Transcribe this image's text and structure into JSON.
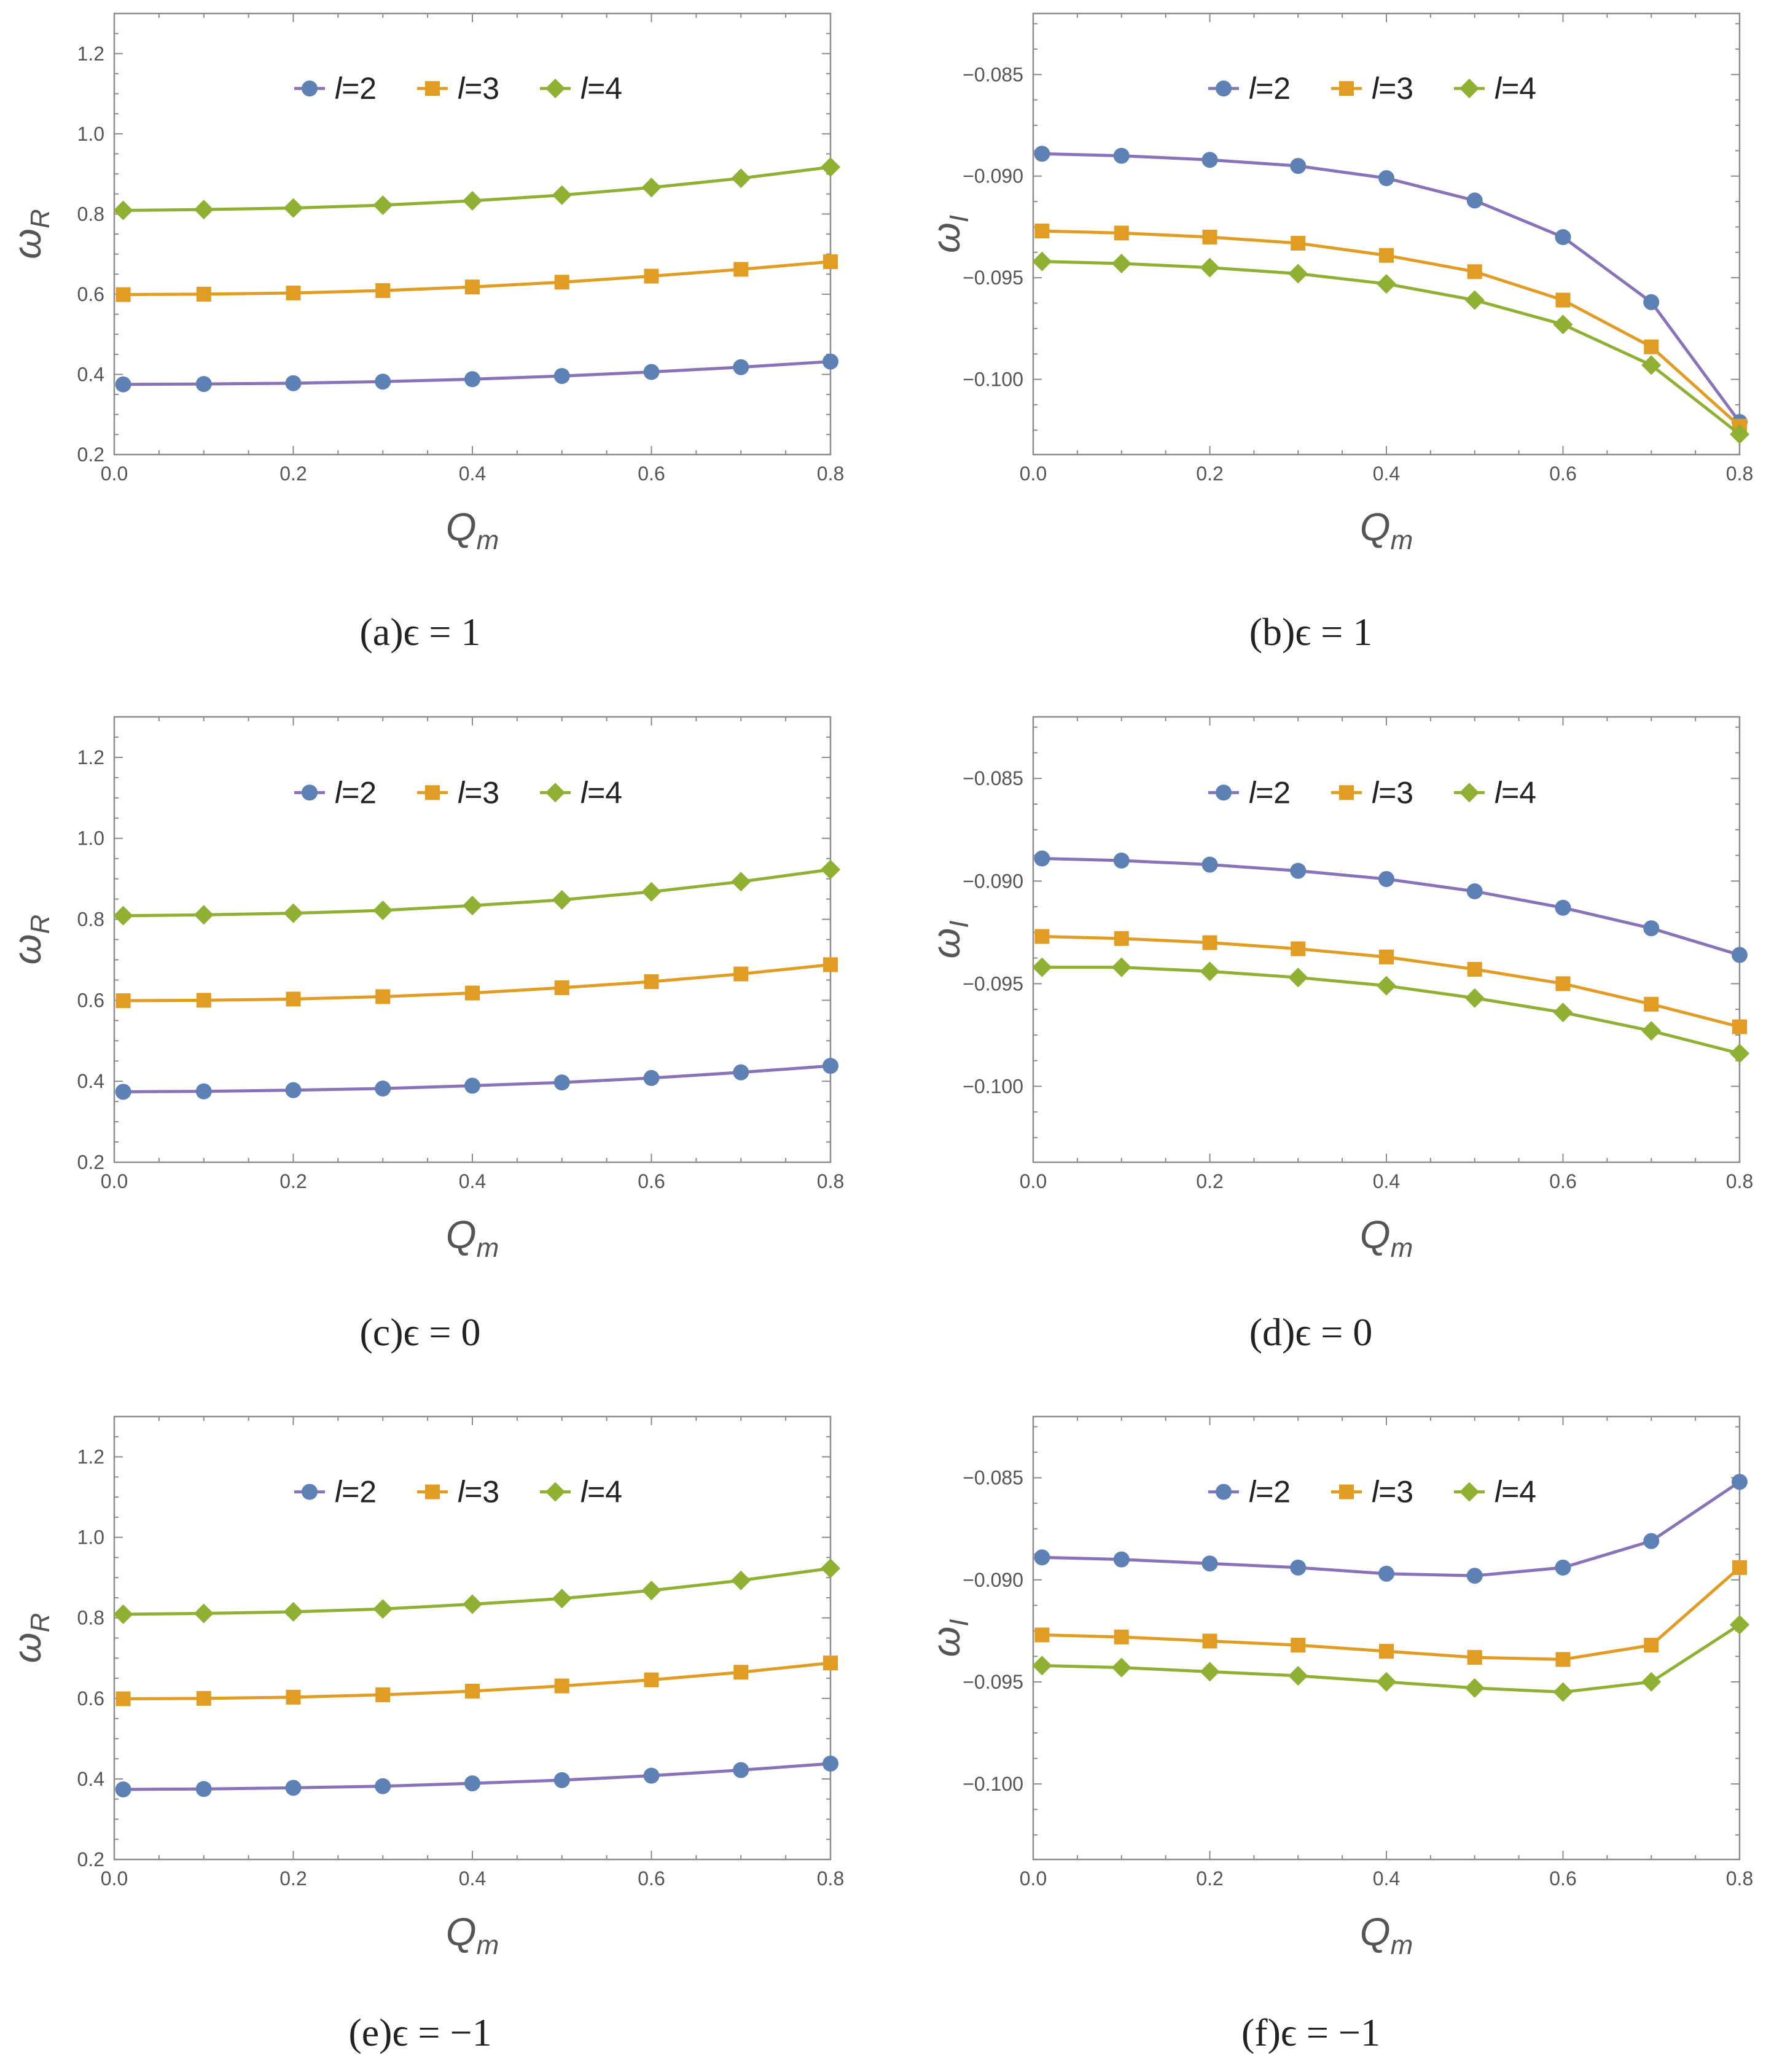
{
  "chart_data": [
    {
      "id": "a",
      "type": "line",
      "caption": "(a)ϵ = 1",
      "xlabel": "Q",
      "xlabel_sub": "m",
      "ylabel": "ω",
      "ylabel_sub": "R",
      "xlim": [
        0,
        0.8
      ],
      "ylim": [
        0.2,
        1.3
      ],
      "xticks": [
        "0.0",
        "0.2",
        "0.4",
        "0.6",
        "0.8"
      ],
      "yticks": [
        "0.2",
        "0.4",
        "0.6",
        "0.8",
        "1.0",
        "1.2"
      ],
      "legend": "top-center",
      "x": [
        0.01,
        0.1,
        0.2,
        0.3,
        0.4,
        0.5,
        0.6,
        0.7,
        0.8
      ],
      "series": [
        {
          "name": "l=2",
          "marker": "circle",
          "values": [
            0.375,
            0.376,
            0.378,
            0.382,
            0.388,
            0.396,
            0.406,
            0.418,
            0.432
          ]
        },
        {
          "name": "l=3",
          "marker": "square",
          "values": [
            0.599,
            0.6,
            0.603,
            0.609,
            0.618,
            0.63,
            0.645,
            0.662,
            0.681
          ]
        },
        {
          "name": "l=4",
          "marker": "diamond",
          "values": [
            0.809,
            0.811,
            0.815,
            0.822,
            0.833,
            0.847,
            0.866,
            0.889,
            0.917
          ]
        }
      ]
    },
    {
      "id": "b",
      "type": "line",
      "caption": "(b)ϵ = 1",
      "xlabel": "Q",
      "xlabel_sub": "m",
      "ylabel": "ω",
      "ylabel_sub": "I",
      "xlim": [
        0,
        0.8
      ],
      "ylim": [
        -0.1037,
        -0.082
      ],
      "xticks": [
        "0.0",
        "0.2",
        "0.4",
        "0.6",
        "0.8"
      ],
      "yticks": [
        "-0.085",
        "-0.090",
        "-0.095",
        "-0.100"
      ],
      "legend": "top-center",
      "x": [
        0.01,
        0.1,
        0.2,
        0.3,
        0.4,
        0.5,
        0.6,
        0.7,
        0.8
      ],
      "series": [
        {
          "name": "l=2",
          "marker": "circle",
          "values": [
            -0.0889,
            -0.089,
            -0.0892,
            -0.0895,
            -0.0901,
            -0.0912,
            -0.093,
            -0.0962,
            -0.1021
          ]
        },
        {
          "name": "l=3",
          "marker": "square",
          "values": [
            -0.0927,
            -0.0928,
            -0.093,
            -0.0933,
            -0.0939,
            -0.0947,
            -0.0961,
            -0.0984,
            -0.1023
          ]
        },
        {
          "name": "l=4",
          "marker": "diamond",
          "values": [
            -0.0942,
            -0.0943,
            -0.0945,
            -0.0948,
            -0.0953,
            -0.0961,
            -0.0973,
            -0.0993,
            -0.1027
          ]
        }
      ]
    },
    {
      "id": "c",
      "type": "line",
      "caption": "(c)ϵ = 0",
      "xlabel": "Q",
      "xlabel_sub": "m",
      "ylabel": "ω",
      "ylabel_sub": "R",
      "xlim": [
        0,
        0.8
      ],
      "ylim": [
        0.2,
        1.3
      ],
      "xticks": [
        "0.0",
        "0.2",
        "0.4",
        "0.6",
        "0.8"
      ],
      "yticks": [
        "0.2",
        "0.4",
        "0.6",
        "0.8",
        "1.0",
        "1.2"
      ],
      "legend": "top-center",
      "x": [
        0.01,
        0.1,
        0.2,
        0.3,
        0.4,
        0.5,
        0.6,
        0.7,
        0.8
      ],
      "series": [
        {
          "name": "l=2",
          "marker": "circle",
          "values": [
            0.374,
            0.375,
            0.378,
            0.382,
            0.389,
            0.397,
            0.408,
            0.422,
            0.438
          ]
        },
        {
          "name": "l=3",
          "marker": "square",
          "values": [
            0.599,
            0.6,
            0.603,
            0.609,
            0.618,
            0.631,
            0.646,
            0.665,
            0.688
          ]
        },
        {
          "name": "l=4",
          "marker": "diamond",
          "values": [
            0.809,
            0.811,
            0.815,
            0.822,
            0.834,
            0.848,
            0.868,
            0.893,
            0.923
          ]
        }
      ]
    },
    {
      "id": "d",
      "type": "line",
      "caption": "(d)ϵ = 0",
      "xlabel": "Q",
      "xlabel_sub": "m",
      "ylabel": "ω",
      "ylabel_sub": "I",
      "xlim": [
        0,
        0.8
      ],
      "ylim": [
        -0.1037,
        -0.082
      ],
      "xticks": [
        "0.0",
        "0.2",
        "0.4",
        "0.6",
        "0.8"
      ],
      "yticks": [
        "-0.085",
        "-0.090",
        "-0.095",
        "-0.100"
      ],
      "legend": "top-center",
      "x": [
        0.01,
        0.1,
        0.2,
        0.3,
        0.4,
        0.5,
        0.6,
        0.7,
        0.8
      ],
      "series": [
        {
          "name": "l=2",
          "marker": "circle",
          "values": [
            -0.0889,
            -0.089,
            -0.0892,
            -0.0895,
            -0.0899,
            -0.0905,
            -0.0913,
            -0.0923,
            -0.0936
          ]
        },
        {
          "name": "l=3",
          "marker": "square",
          "values": [
            -0.0927,
            -0.0928,
            -0.093,
            -0.0933,
            -0.0937,
            -0.0943,
            -0.095,
            -0.096,
            -0.0971
          ]
        },
        {
          "name": "l=4",
          "marker": "diamond",
          "values": [
            -0.0942,
            -0.0942,
            -0.0944,
            -0.0947,
            -0.0951,
            -0.0957,
            -0.0964,
            -0.0973,
            -0.0984
          ]
        }
      ]
    },
    {
      "id": "e",
      "type": "line",
      "caption": "(e)ϵ = −1",
      "xlabel": "Q",
      "xlabel_sub": "m",
      "ylabel": "ω",
      "ylabel_sub": "R",
      "xlim": [
        0,
        0.8
      ],
      "ylim": [
        0.2,
        1.3
      ],
      "xticks": [
        "0.0",
        "0.2",
        "0.4",
        "0.6",
        "0.8"
      ],
      "yticks": [
        "0.2",
        "0.4",
        "0.6",
        "0.8",
        "1.0",
        "1.2"
      ],
      "legend": "top-center",
      "x": [
        0.01,
        0.1,
        0.2,
        0.3,
        0.4,
        0.5,
        0.6,
        0.7,
        0.8
      ],
      "series": [
        {
          "name": "l=2",
          "marker": "circle",
          "values": [
            0.374,
            0.375,
            0.378,
            0.382,
            0.389,
            0.397,
            0.408,
            0.422,
            0.438
          ]
        },
        {
          "name": "l=3",
          "marker": "square",
          "values": [
            0.599,
            0.6,
            0.603,
            0.609,
            0.618,
            0.631,
            0.646,
            0.665,
            0.688
          ]
        },
        {
          "name": "l=4",
          "marker": "diamond",
          "values": [
            0.809,
            0.811,
            0.815,
            0.822,
            0.834,
            0.848,
            0.868,
            0.893,
            0.923
          ]
        }
      ]
    },
    {
      "id": "f",
      "type": "line",
      "caption": "(f)ϵ = −1",
      "xlabel": "Q",
      "xlabel_sub": "m",
      "ylabel": "ω",
      "ylabel_sub": "I",
      "xlim": [
        0,
        0.8
      ],
      "ylim": [
        -0.1037,
        -0.082
      ],
      "xticks": [
        "0.0",
        "0.2",
        "0.4",
        "0.6",
        "0.8"
      ],
      "yticks": [
        "-0.085",
        "-0.090",
        "-0.095",
        "-0.100"
      ],
      "legend": "top-center",
      "x": [
        0.01,
        0.1,
        0.2,
        0.3,
        0.4,
        0.5,
        0.6,
        0.7,
        0.8
      ],
      "series": [
        {
          "name": "l=2",
          "marker": "circle",
          "values": [
            -0.0889,
            -0.089,
            -0.0892,
            -0.0894,
            -0.0897,
            -0.0898,
            -0.0894,
            -0.0881,
            -0.0852
          ]
        },
        {
          "name": "l=3",
          "marker": "square",
          "values": [
            -0.0927,
            -0.0928,
            -0.093,
            -0.0932,
            -0.0935,
            -0.0938,
            -0.0939,
            -0.0932,
            -0.0894
          ]
        },
        {
          "name": "l=4",
          "marker": "diamond",
          "values": [
            -0.0942,
            -0.0943,
            -0.0945,
            -0.0947,
            -0.095,
            -0.0953,
            -0.0955,
            -0.095,
            -0.0922
          ]
        }
      ]
    }
  ],
  "colors": {
    "l2_marker": "#5E81B5",
    "l2_line": "#8872B8",
    "l3": "#E19C24",
    "l4": "#8FB032",
    "frame": "#8c8c8c",
    "text": "#555555"
  }
}
